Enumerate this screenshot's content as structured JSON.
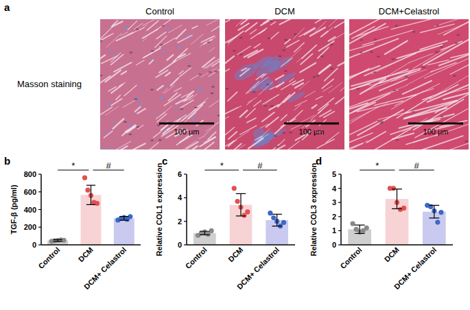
{
  "histology": {
    "panel": "a",
    "row_label": "Masson staining",
    "columns": [
      "Control",
      "DCM",
      "DCM+Celastrol"
    ],
    "scale_bar": "100 µm"
  },
  "chart_data": [
    {
      "type": "bar",
      "panel": "b",
      "y_label": "TGF-β (pg/ml)",
      "categories": [
        "Control",
        "DCM",
        "DCM+ Celastrol"
      ],
      "values": [
        50,
        565,
        300
      ],
      "errors": [
        10,
        110,
        22
      ],
      "points": [
        [
          40,
          45,
          50,
          55,
          52
        ],
        [
          760,
          620,
          560,
          480,
          470
        ],
        [
          280,
          300,
          310,
          290,
          320
        ]
      ],
      "colors": [
        "#cfcfcf",
        "#f7d3d6",
        "#cacaf0"
      ],
      "ylim": [
        0,
        800
      ],
      "yticks": [
        0,
        200,
        400,
        600,
        800
      ],
      "annotations": [
        {
          "text": "*",
          "between": [
            "Control",
            "DCM"
          ]
        },
        {
          "text": "#",
          "between": [
            "DCM",
            "DCM+ Celastrol"
          ]
        }
      ]
    },
    {
      "type": "bar",
      "panel": "c",
      "y_label": "Relative COL1 expression",
      "categories": [
        "Control",
        "DCM",
        "DCM+ Celastrol"
      ],
      "values": [
        1.0,
        3.4,
        2.1
      ],
      "errors": [
        0.15,
        0.95,
        0.5
      ],
      "points": [
        [
          0.8,
          1.0,
          1.1,
          0.9,
          1.2
        ],
        [
          4.8,
          3.7,
          3.2,
          2.5,
          2.8
        ],
        [
          2.7,
          2.3,
          2.0,
          1.6,
          1.9
        ]
      ],
      "colors": [
        "#cfcfcf",
        "#f7d3d6",
        "#cacaf0"
      ],
      "ylim": [
        0,
        6
      ],
      "yticks": [
        0,
        2,
        4,
        6
      ],
      "annotations": [
        {
          "text": "*",
          "between": [
            "Control",
            "DCM"
          ]
        },
        {
          "text": "#",
          "between": [
            "DCM",
            "DCM+ Celastrol"
          ]
        }
      ]
    },
    {
      "type": "bar",
      "panel": "d",
      "y_label": "Relative COL3 expression",
      "categories": [
        "Control",
        "DCM",
        "DCM+ Celastrol"
      ],
      "values": [
        1.1,
        3.25,
        2.35
      ],
      "errors": [
        0.3,
        0.7,
        0.45
      ],
      "points": [
        [
          1.5,
          1.1,
          0.9,
          1.0,
          1.2
        ],
        [
          4.0,
          4.0,
          3.0,
          2.5,
          2.6
        ],
        [
          2.8,
          2.7,
          2.4,
          1.6,
          2.3
        ]
      ],
      "colors": [
        "#cfcfcf",
        "#f7d3d6",
        "#cacaf0"
      ],
      "ylim": [
        0,
        5
      ],
      "yticks": [
        0,
        1,
        2,
        3,
        4,
        5
      ],
      "annotations": [
        {
          "text": "*",
          "between": [
            "Control",
            "DCM"
          ]
        },
        {
          "text": "#",
          "between": [
            "DCM",
            "DCM+ Celastrol"
          ]
        }
      ]
    }
  ]
}
